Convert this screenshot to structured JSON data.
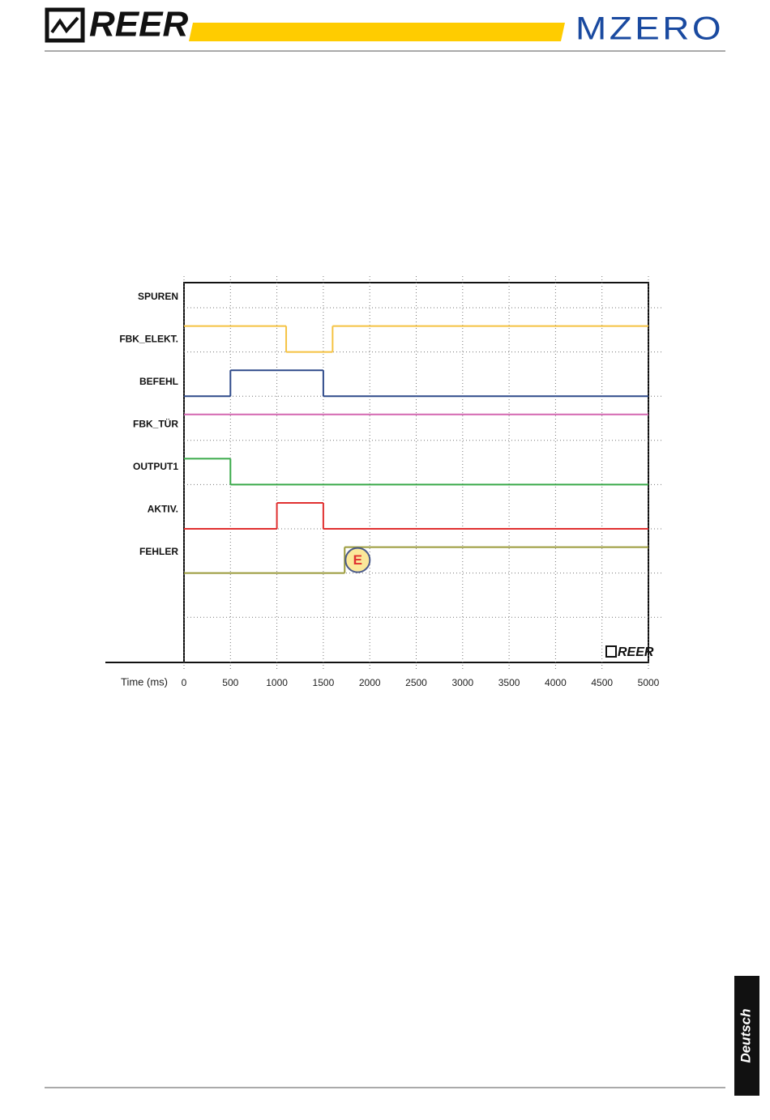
{
  "header": {
    "logo_left": "REER",
    "logo_right": "MZERO"
  },
  "chart_data": {
    "type": "step",
    "x_label": "Time (ms)",
    "xlim": [
      0,
      5000
    ],
    "xticks": [
      0,
      500,
      1000,
      1500,
      2000,
      2500,
      3000,
      3500,
      4000,
      4500,
      5000
    ],
    "grid": true,
    "watermark": "REER",
    "series": [
      {
        "name": "SPUREN",
        "color": "#000000",
        "x": [],
        "values": []
      },
      {
        "name": "FBK_ELEKT.",
        "color": "#f5c242",
        "x": [
          0,
          1100,
          1600
        ],
        "values": [
          1,
          0,
          1
        ]
      },
      {
        "name": "BEFEHL",
        "color": "#2f4a8a",
        "x": [
          0,
          500,
          1500
        ],
        "values": [
          0,
          1,
          0
        ]
      },
      {
        "name": "FBK_TÜR",
        "color": "#d466b0",
        "x": [
          0
        ],
        "values": [
          1
        ]
      },
      {
        "name": "OUTPUT1",
        "color": "#3aaa4a",
        "x": [
          0,
          500
        ],
        "values": [
          1,
          0
        ]
      },
      {
        "name": "AKTIV.",
        "color": "#e03030",
        "x": [
          0,
          1000,
          1500
        ],
        "values": [
          0,
          1,
          0
        ]
      },
      {
        "name": "FEHLER",
        "color": "#9a9a3a",
        "x": [
          0,
          1730
        ],
        "values": [
          0,
          1
        ]
      }
    ],
    "annotation": {
      "text": "E",
      "x": 1870
    }
  },
  "side_tab": "Deutsch"
}
